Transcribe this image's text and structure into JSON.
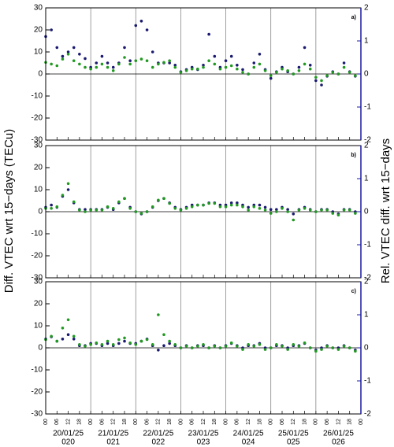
{
  "chart_data": [
    {
      "type": "scatter",
      "label": "a)",
      "ylabel": "Diff. VTEC wrt 15−days (TECu)",
      "y2label": "Rel. VTEC diff. wrt 15−days",
      "xlim": [
        0,
        168
      ],
      "ylim": [
        -30,
        30
      ],
      "yticks": [
        -30,
        -20,
        -10,
        0,
        10,
        20,
        30
      ],
      "y2lim": [
        -2,
        2
      ],
      "y2ticks": [
        -2,
        -1,
        0,
        1,
        2
      ],
      "x": [
        0,
        3,
        6,
        9,
        12,
        15,
        18,
        21,
        24,
        27,
        30,
        33,
        36,
        39,
        42,
        45,
        48,
        51,
        54,
        57,
        60,
        63,
        66,
        69,
        72,
        75,
        78,
        81,
        84,
        87,
        90,
        93,
        96,
        99,
        102,
        105,
        108,
        111,
        114,
        117,
        120,
        123,
        126,
        129,
        132,
        135,
        138,
        141,
        144,
        147,
        150,
        153,
        156,
        159,
        162,
        165
      ],
      "series": [
        {
          "color": "#191970",
          "values": [
            17,
            20,
            12,
            8,
            10,
            12,
            9,
            7,
            3,
            5,
            8,
            5,
            3,
            5,
            12,
            6,
            22,
            24,
            20,
            10,
            5,
            5,
            5,
            4,
            1,
            2,
            3,
            2,
            4,
            18,
            8,
            3,
            6,
            8,
            4,
            2,
            0,
            5,
            9,
            2,
            -2,
            1,
            3,
            1,
            0,
            3,
            12,
            4,
            -3,
            -5,
            -1,
            1,
            0,
            5,
            1,
            -1
          ]
        },
        {
          "color": "#229922",
          "axis": "y2",
          "values": [
            0.35,
            0.3,
            0.25,
            0.45,
            0.6,
            0.4,
            0.3,
            0.2,
            0.15,
            0.2,
            0.3,
            0.2,
            0.1,
            0.3,
            0.5,
            0.3,
            0.4,
            0.45,
            0.4,
            0.2,
            0.3,
            0.35,
            0.4,
            0.2,
            0.05,
            0.1,
            0.15,
            0.15,
            0.2,
            0.4,
            0.3,
            0.15,
            0.2,
            0.25,
            0.15,
            0.05,
            0,
            0.2,
            0.3,
            0.1,
            -0.05,
            0.05,
            0.15,
            0.1,
            0,
            0.1,
            0.3,
            0.15,
            -0.1,
            -0.2,
            -0.05,
            0.05,
            0,
            0.2,
            0.05,
            -0.05
          ]
        }
      ]
    },
    {
      "type": "scatter",
      "label": "b)",
      "xlim": [
        0,
        168
      ],
      "ylim": [
        -30,
        30
      ],
      "yticks": [
        -30,
        -20,
        -10,
        0,
        10,
        20,
        30
      ],
      "y2lim": [
        -2,
        2
      ],
      "y2ticks": [
        -2,
        -1,
        0,
        1,
        2
      ],
      "x": [
        0,
        3,
        6,
        9,
        12,
        15,
        18,
        21,
        24,
        27,
        30,
        33,
        36,
        39,
        42,
        45,
        48,
        51,
        54,
        57,
        60,
        63,
        66,
        69,
        72,
        75,
        78,
        81,
        84,
        87,
        90,
        93,
        96,
        99,
        102,
        105,
        108,
        111,
        114,
        117,
        120,
        123,
        126,
        129,
        132,
        135,
        138,
        141,
        144,
        147,
        150,
        153,
        156,
        159,
        162,
        165
      ],
      "series": [
        {
          "color": "#191970",
          "values": [
            2,
            3,
            2,
            7,
            10,
            4,
            1,
            1,
            1,
            1,
            1,
            2,
            1,
            4,
            6,
            2,
            0,
            -1,
            0,
            2,
            5,
            6,
            4,
            2,
            1,
            2,
            3,
            3,
            3,
            4,
            4,
            3,
            3,
            4,
            4,
            3,
            2,
            3,
            3,
            2,
            1,
            1,
            2,
            1,
            -1,
            1,
            2,
            1,
            0,
            1,
            1,
            0,
            -1,
            1,
            1,
            0
          ]
        },
        {
          "color": "#229922",
          "axis": "y2",
          "values": [
            0.1,
            0.1,
            0.15,
            0.5,
            0.85,
            0.3,
            0.05,
            0,
            0.05,
            0.05,
            0.05,
            0.15,
            0.1,
            0.3,
            0.4,
            0.1,
            0,
            -0.05,
            0,
            0.15,
            0.35,
            0.4,
            0.25,
            0.1,
            0.05,
            0.1,
            0.15,
            0.2,
            0.2,
            0.25,
            0.25,
            0.15,
            0.15,
            0.2,
            0.2,
            0.15,
            0.05,
            0.15,
            0.1,
            0.05,
            -0.05,
            0,
            0.1,
            0,
            -0.25,
            0.05,
            0.1,
            0.05,
            0,
            0.05,
            0.05,
            -0.05,
            -0.1,
            0.05,
            0.05,
            -0.05
          ]
        }
      ]
    },
    {
      "type": "scatter",
      "label": "c)",
      "xlim": [
        0,
        168
      ],
      "ylim": [
        -30,
        30
      ],
      "yticks": [
        -30,
        -20,
        -10,
        0,
        10,
        20,
        30
      ],
      "y2lim": [
        -2,
        2
      ],
      "y2ticks": [
        -2,
        -1,
        0,
        1,
        2
      ],
      "xticks": [
        {
          "value": 0,
          "label": "00"
        },
        {
          "value": 6,
          "label": "06"
        },
        {
          "value": 12,
          "label": "12"
        },
        {
          "value": 18,
          "label": "18"
        },
        {
          "value": 24,
          "label": "00"
        },
        {
          "value": 30,
          "label": "06"
        },
        {
          "value": 36,
          "label": "12"
        },
        {
          "value": 42,
          "label": "18"
        },
        {
          "value": 48,
          "label": "00"
        },
        {
          "value": 54,
          "label": "06"
        },
        {
          "value": 60,
          "label": "12"
        },
        {
          "value": 66,
          "label": "18"
        },
        {
          "value": 72,
          "label": "00"
        },
        {
          "value": 78,
          "label": "06"
        },
        {
          "value": 84,
          "label": "12"
        },
        {
          "value": 90,
          "label": "18"
        },
        {
          "value": 96,
          "label": "00"
        },
        {
          "value": 102,
          "label": "06"
        },
        {
          "value": 108,
          "label": "12"
        },
        {
          "value": 114,
          "label": "18"
        },
        {
          "value": 120,
          "label": "00"
        },
        {
          "value": 126,
          "label": "06"
        },
        {
          "value": 132,
          "label": "12"
        },
        {
          "value": 138,
          "label": "18"
        },
        {
          "value": 144,
          "label": "00"
        },
        {
          "value": 150,
          "label": "06"
        },
        {
          "value": 156,
          "label": "12"
        },
        {
          "value": 162,
          "label": "18"
        },
        {
          "value": 168,
          "label": "00"
        }
      ],
      "day_labels": [
        "20/01/25",
        "21/01/25",
        "22/01/25",
        "23/01/25",
        "24/01/25",
        "25/01/25",
        "26/01/25"
      ],
      "doy_labels": [
        "020",
        "021",
        "022",
        "023",
        "024",
        "025",
        "026"
      ],
      "x": [
        0,
        3,
        6,
        9,
        12,
        15,
        18,
        21,
        24,
        27,
        30,
        33,
        36,
        39,
        42,
        45,
        48,
        51,
        54,
        57,
        60,
        63,
        66,
        69,
        72,
        75,
        78,
        81,
        84,
        87,
        90,
        93,
        96,
        99,
        102,
        105,
        108,
        111,
        114,
        117,
        120,
        123,
        126,
        129,
        132,
        135,
        138,
        141,
        144,
        147,
        150,
        153,
        156,
        159,
        162,
        165
      ],
      "series": [
        {
          "color": "#191970",
          "values": [
            4,
            5,
            3,
            4,
            6,
            4,
            1,
            1,
            2,
            2,
            1,
            2,
            1,
            2,
            3,
            2,
            2,
            3,
            4,
            1,
            -1,
            1,
            2,
            1,
            0,
            1,
            0,
            1,
            1,
            0,
            1,
            0,
            1,
            2,
            1,
            0,
            1,
            1,
            2,
            0,
            0,
            1,
            1,
            0,
            1,
            1,
            2,
            0,
            -1,
            0,
            1,
            0,
            0,
            1,
            0,
            -1
          ]
        },
        {
          "color": "#229922",
          "axis": "y2",
          "values": [
            0.25,
            0.35,
            0.2,
            0.6,
            0.85,
            0.35,
            0.1,
            0.05,
            0.1,
            0.15,
            0.1,
            0.2,
            0.1,
            0.25,
            0.3,
            0.15,
            0.1,
            0.2,
            0.25,
            0.1,
            1.0,
            0.4,
            0.2,
            0.1,
            0,
            0.05,
            0,
            0.05,
            0.1,
            0,
            0.05,
            0,
            0.05,
            0.15,
            0.05,
            -0.05,
            0.1,
            0.05,
            0.1,
            -0.05,
            0,
            0.1,
            0.05,
            -0.05,
            0.1,
            0.05,
            0.15,
            0,
            -0.1,
            -0.05,
            0.05,
            0,
            -0.05,
            0.05,
            0,
            -0.1
          ]
        }
      ]
    }
  ]
}
